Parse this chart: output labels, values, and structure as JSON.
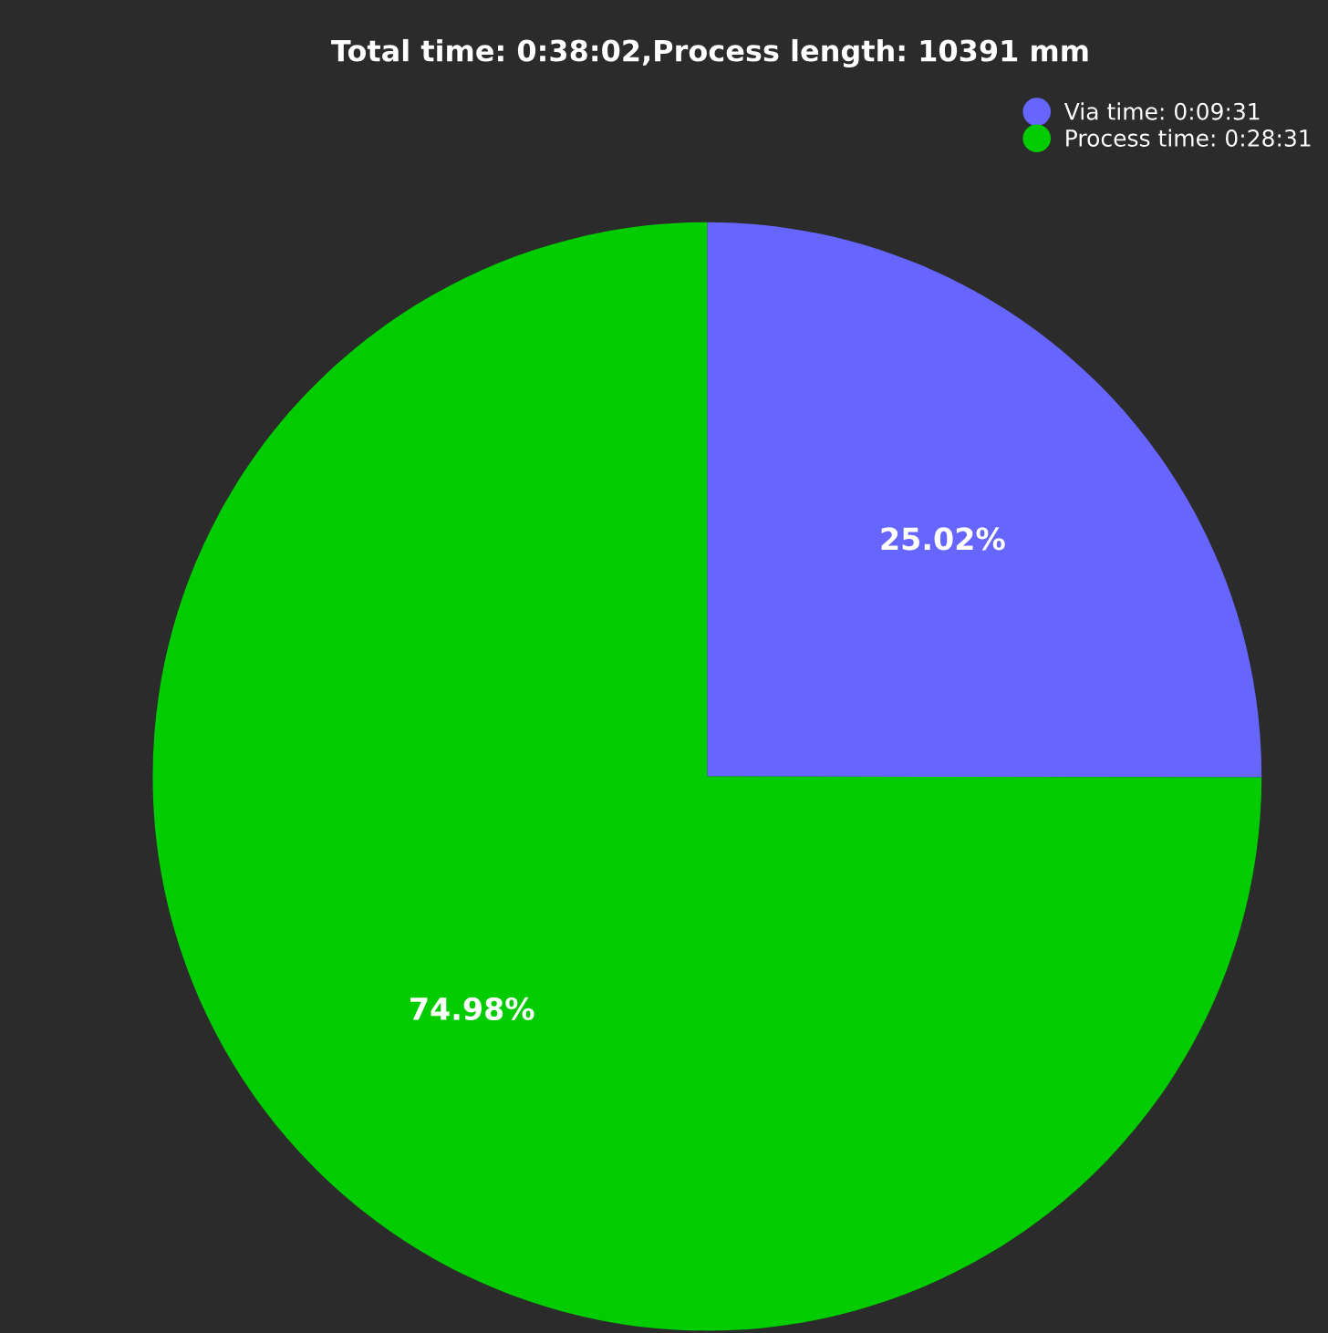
{
  "chart_data": {
    "type": "pie",
    "title": "Total time: 0:38:02,Process length: 10391 mm",
    "categories": [
      "Via time: 0:09:31",
      "Process time: 0:28:31"
    ],
    "values": [
      25.02,
      74.98
    ],
    "colors": [
      "#6666ff",
      "#00cc00"
    ],
    "value_labels": [
      "25.02%",
      "74.98%"
    ],
    "legend": "top right"
  }
}
